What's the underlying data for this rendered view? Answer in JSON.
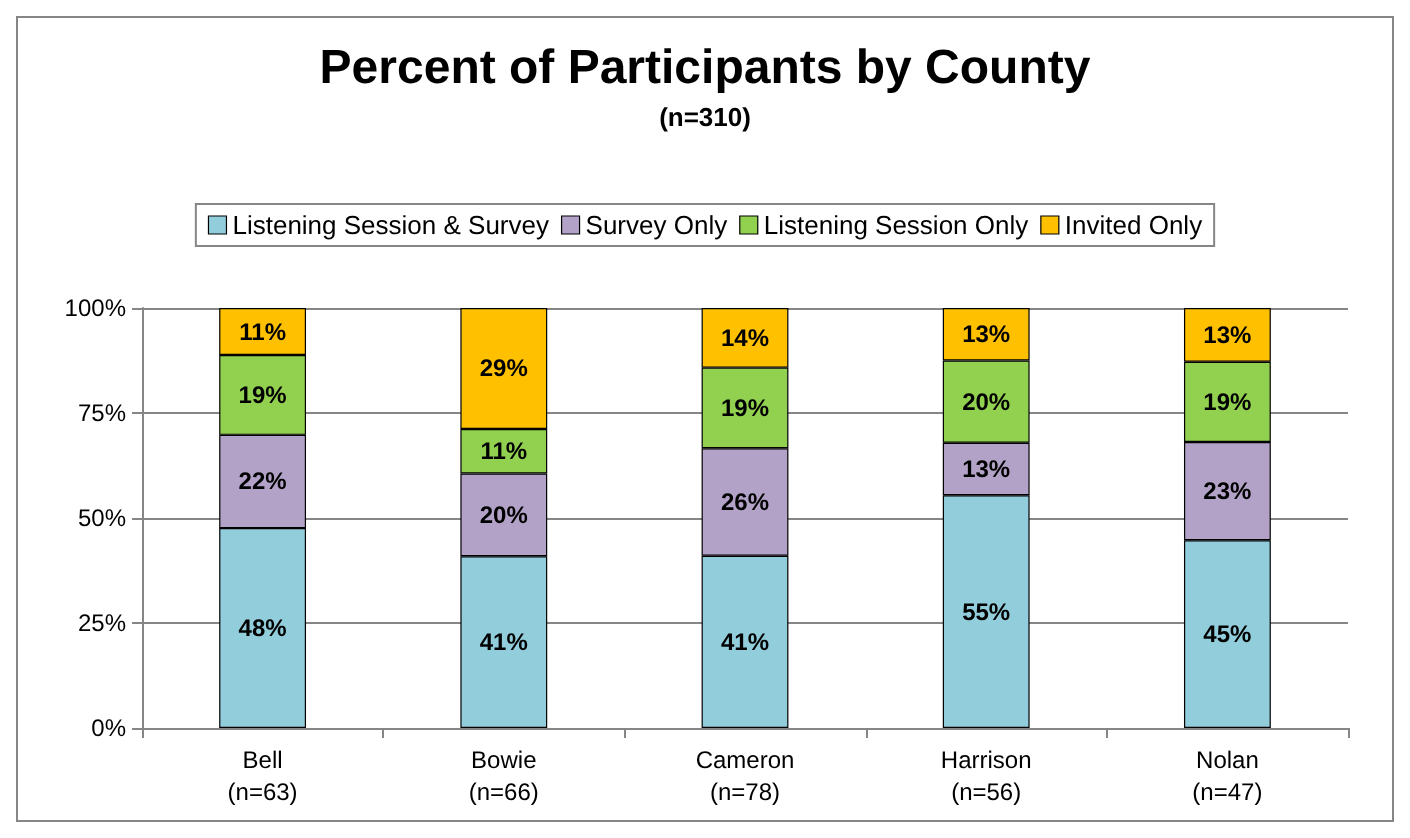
{
  "chart_data": {
    "type": "bar",
    "title": "Percent of Participants by County",
    "subtitle": "(n=310)",
    "categories": [
      "Bell\n(n=63)",
      "Bowie\n(n=66)",
      "Cameron\n(n=78)",
      "Harrison\n(n=56)",
      "Nolan\n(n=47)"
    ],
    "stacked": true,
    "series": [
      {
        "name": "Listening Session & Survey",
        "color": "#92cddc",
        "values": [
          47.6,
          40.9,
          41.0,
          55.4,
          44.7
        ],
        "value_labels": [
          "48%",
          "41%",
          "41%",
          "55%",
          "45%"
        ]
      },
      {
        "name": "Survey Only",
        "color": "#b2a2c7",
        "values": [
          22.2,
          19.7,
          25.6,
          12.5,
          23.4
        ],
        "value_labels": [
          "22%",
          "20%",
          "26%",
          "13%",
          "23%"
        ]
      },
      {
        "name": "Listening Session Only",
        "color": "#92d050",
        "values": [
          19.0,
          10.6,
          19.2,
          19.6,
          19.1
        ],
        "value_labels": [
          "19%",
          "11%",
          "19%",
          "20%",
          "19%"
        ]
      },
      {
        "name": "Invited Only",
        "color": "#ffc000",
        "values": [
          11.2,
          28.8,
          14.2,
          12.5,
          12.8
        ],
        "value_labels": [
          "11%",
          "29%",
          "14%",
          "13%",
          "13%"
        ]
      }
    ],
    "ylim": [
      0,
      100
    ],
    "yticks": [
      {
        "value": 0,
        "label": "0%"
      },
      {
        "value": 25,
        "label": "25%"
      },
      {
        "value": 50,
        "label": "50%"
      },
      {
        "value": 75,
        "label": "75%"
      },
      {
        "value": 100,
        "label": "100%"
      }
    ],
    "grid": "y",
    "legend": "top"
  }
}
